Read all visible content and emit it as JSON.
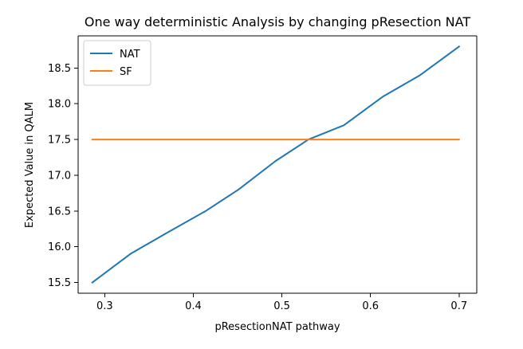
{
  "chart_data": {
    "type": "line",
    "title": "One way deterministic Analysis by changing pResection NAT",
    "xlabel": "pResectionNAT pathway",
    "ylabel": "Expected Value in QALM",
    "xlim": [
      0.27,
      0.72
    ],
    "ylim": [
      15.35,
      18.95
    ],
    "x_ticks": [
      0.3,
      0.4,
      0.5,
      0.6,
      0.7
    ],
    "x_tick_labels": [
      "0.3",
      "0.4",
      "0.5",
      "0.6",
      "0.7"
    ],
    "y_ticks": [
      15.5,
      16.0,
      16.5,
      17.0,
      17.5,
      18.0,
      18.5
    ],
    "y_tick_labels": [
      "15.5",
      "16.0",
      "16.5",
      "17.0",
      "17.5",
      "18.0",
      "18.5"
    ],
    "grid": false,
    "legend_position": "top-left",
    "series": [
      {
        "name": "NAT",
        "color": "#1f77b4",
        "x": [
          0.286,
          0.329,
          0.371,
          0.414,
          0.451,
          0.493,
          0.53,
          0.57,
          0.614,
          0.656,
          0.7
        ],
        "y": [
          15.5,
          15.9,
          16.2,
          16.5,
          16.8,
          17.2,
          17.5,
          17.7,
          18.1,
          18.4,
          18.8
        ]
      },
      {
        "name": "SF",
        "color": "#ff7f0e",
        "x": [
          0.286,
          0.7
        ],
        "y": [
          17.5,
          17.5
        ]
      }
    ]
  }
}
